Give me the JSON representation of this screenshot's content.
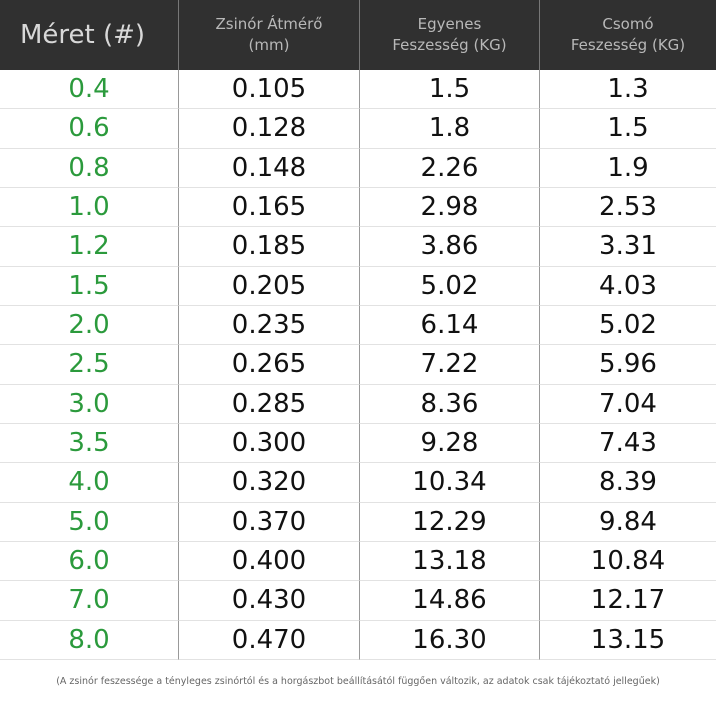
{
  "header": [
    [
      "Méret (#)"
    ],
    [
      "Zsinór Átmérő",
      "(mm)"
    ],
    [
      "Egyenes",
      "Feszesség (KG)"
    ],
    [
      "Csomó",
      "Feszesség (KG)"
    ]
  ],
  "table": {
    "rows": [
      [
        "0.4",
        "0.105",
        "1.5",
        "1.3"
      ],
      [
        "0.6",
        "0.128",
        "1.8",
        "1.5"
      ],
      [
        "0.8",
        "0.148",
        "2.26",
        "1.9"
      ],
      [
        "1.0",
        "0.165",
        "2.98",
        "2.53"
      ],
      [
        "1.2",
        "0.185",
        "3.86",
        "3.31"
      ],
      [
        "1.5",
        "0.205",
        "5.02",
        "4.03"
      ],
      [
        "2.0",
        "0.235",
        "6.14",
        "5.02"
      ],
      [
        "2.5",
        "0.265",
        "7.22",
        "5.96"
      ],
      [
        "3.0",
        "0.285",
        "8.36",
        "7.04"
      ],
      [
        "3.5",
        "0.300",
        "9.28",
        "7.43"
      ],
      [
        "4.0",
        "0.320",
        "10.34",
        "8.39"
      ],
      [
        "5.0",
        "0.370",
        "12.29",
        "9.84"
      ],
      [
        "6.0",
        "0.400",
        "13.18",
        "10.84"
      ],
      [
        "7.0",
        "0.430",
        "14.86",
        "12.17"
      ],
      [
        "8.0",
        "0.470",
        "16.30",
        "13.15"
      ]
    ]
  },
  "footnote": "(A zsinór feszessége a tényleges zsinórtól és a horgászbot beállításától függően változik, az adatok csak tájékoztató jellegűek)"
}
